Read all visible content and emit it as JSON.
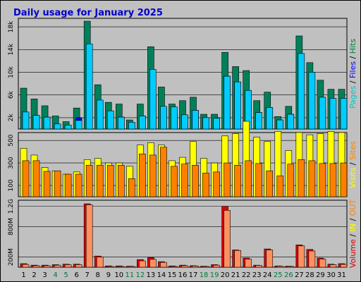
{
  "chart_data": {
    "type": "bar",
    "title": "Daily usage for January 2025",
    "categories": [
      "1",
      "2",
      "3",
      "4",
      "5",
      "6",
      "7",
      "8",
      "9",
      "10",
      "11",
      "12",
      "13",
      "14",
      "15",
      "16",
      "17",
      "18",
      "19",
      "20",
      "21",
      "22",
      "23",
      "24",
      "25",
      "26",
      "27",
      "28",
      "29",
      "30",
      "31"
    ],
    "weekend_days": [
      "4",
      "5",
      "11",
      "12",
      "18",
      "19",
      "25",
      "26"
    ],
    "panels": [
      {
        "id": "hits",
        "ylim": [
          0,
          19500
        ],
        "y_ticks": [
          {
            "v": 2000,
            "label": "2k"
          },
          {
            "v": 6000,
            "label": "6k"
          },
          {
            "v": 10000,
            "label": "10k"
          },
          {
            "v": 14000,
            "label": "14k"
          },
          {
            "v": 18000,
            "label": "18k"
          }
        ],
        "legend": [
          {
            "text": "Pages",
            "color": "#00c8c8"
          },
          {
            "text": " / ",
            "color": "#000000"
          },
          {
            "text": "Files",
            "color": "#0000ff"
          },
          {
            "text": " / ",
            "color": "#000000"
          },
          {
            "text": "Hits",
            "color": "#008040"
          }
        ],
        "series": [
          {
            "name": "Hits",
            "color": "#00805a",
            "offset": 0,
            "values": [
              7200,
              5300,
              4100,
              2300,
              1300,
              3700,
              19000,
              7800,
              4700,
              4400,
              1600,
              4400,
              14500,
              7400,
              4400,
              5000,
              5600,
              2600,
              2600,
              13500,
              11000,
              10300,
              5000,
              6500,
              2200,
              4000,
              16400,
              11700,
              8600,
              7000,
              7000
            ]
          },
          {
            "name": "Files",
            "color": "#0000ff",
            "offset": 3,
            "values": [
              3000,
              2400,
              2100,
              900,
              700,
              2000,
              12500,
              5000,
              3200,
              2100,
              1200,
              2300,
              6000,
              3800,
              2700,
              2500,
              3300,
              2000,
              1900,
              9300,
              8300,
              6800,
              2900,
              3800,
              1600,
              2600,
              6000,
              6000,
              3700,
              2200,
              2400
            ]
          },
          {
            "name": "Pages",
            "color": "#00ccff",
            "offset": 3,
            "values": [
              3000,
              2400,
              2100,
              900,
              700,
              1500,
              15000,
              5100,
              3200,
              2100,
              1200,
              2300,
              10500,
              4000,
              3900,
              2500,
              3300,
              2000,
              1900,
              9300,
              8300,
              6800,
              2900,
              3800,
              1600,
              2600,
              13300,
              10000,
              5600,
              5400,
              5400
            ]
          }
        ]
      },
      {
        "id": "visits",
        "ylim": [
          0,
          570
        ],
        "y_ticks": [
          {
            "v": 100,
            "label": "100"
          },
          {
            "v": 300,
            "label": "300"
          },
          {
            "v": 500,
            "label": "500"
          }
        ],
        "legend": [
          {
            "text": "Visits",
            "color": "#ffff00"
          },
          {
            "text": " / ",
            "color": "#000000"
          },
          {
            "text": "Sites",
            "color": "#ff8000"
          }
        ],
        "series": [
          {
            "name": "Visits",
            "color": "#ffff00",
            "offset": 0,
            "values": [
              430,
              370,
              260,
              230,
              200,
              220,
              330,
              340,
              300,
              300,
              270,
              460,
              480,
              460,
              320,
              350,
              490,
              340,
              300,
              540,
              560,
              670,
              530,
              490,
              580,
              410,
              570,
              550,
              560,
              580,
              570
            ]
          },
          {
            "name": "Sites",
            "color": "#ff8000",
            "offset": 3,
            "values": [
              320,
              320,
              225,
              230,
              200,
              200,
              280,
              280,
              280,
              280,
              160,
              380,
              370,
              440,
              270,
              290,
              280,
              210,
              220,
              300,
              280,
              320,
              295,
              230,
              185,
              290,
              330,
              320,
              295,
              295,
              300
            ]
          }
        ]
      },
      {
        "id": "volume",
        "ylim": [
          0,
          1320
        ],
        "y_ticks": [
          {
            "v": 200,
            "label": "200M"
          },
          {
            "v": 800,
            "label": "800M"
          },
          {
            "v": 1200,
            "label": "1.2G"
          }
        ],
        "legend": [
          {
            "text": "Volume",
            "color": "#cc0000"
          },
          {
            "text": " / ",
            "color": "#000000"
          },
          {
            "text": "IN",
            "color": "#ffff00"
          },
          {
            "text": " / ",
            "color": "#000000"
          },
          {
            "text": "OUT",
            "color": "#ff8000"
          }
        ],
        "series": [
          {
            "name": "Volume",
            "color": "#e00000",
            "offset": 0,
            "values": [
              70,
              40,
              40,
              50,
              60,
              60,
              1250,
              220,
              25,
              25,
              20,
              150,
              190,
              110,
              25,
              40,
              30,
              20,
              50,
              1200,
              340,
              180,
              40,
              360,
              25,
              20,
              440,
              350,
              180,
              60,
              70
            ]
          },
          {
            "name": "OUT",
            "color": "#ff9060",
            "offset": 3,
            "values": [
              55,
              30,
              30,
              40,
              50,
              50,
              1230,
              200,
              15,
              15,
              15,
              125,
              155,
              95,
              15,
              30,
              25,
              15,
              40,
              1120,
              330,
              160,
              35,
              340,
              20,
              15,
              420,
              320,
              160,
              50,
              55
            ]
          }
        ]
      }
    ]
  }
}
